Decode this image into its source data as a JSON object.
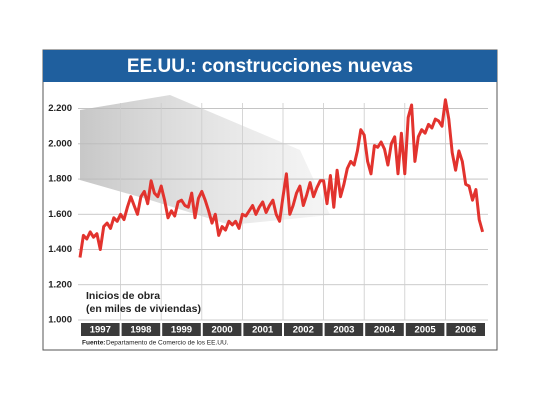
{
  "chart_data": {
    "type": "line",
    "title": "EE.UU.: construcciones nuevas",
    "annotation": [
      "Inicios de obra",
      "(en miles de viviendas)"
    ],
    "source_label": "Fuente:",
    "source": "Departamento de Comercio de los EE.UU.",
    "categories": [
      "1997",
      "1998",
      "1999",
      "2000",
      "2001",
      "2002",
      "2003",
      "2004",
      "2005",
      "2006"
    ],
    "values": [
      [
        1355,
        1480,
        1460,
        1500,
        1470,
        1490,
        1400,
        1530,
        1550,
        1520,
        1580,
        1560
      ],
      [
        1600,
        1570,
        1640,
        1700,
        1650,
        1600,
        1700,
        1730,
        1660,
        1790,
        1720,
        1700
      ],
      [
        1760,
        1680,
        1580,
        1620,
        1590,
        1670,
        1680,
        1650,
        1640,
        1720,
        1580,
        1690
      ],
      [
        1730,
        1680,
        1620,
        1550,
        1600,
        1480,
        1530,
        1510,
        1560,
        1540,
        1560,
        1520
      ],
      [
        1600,
        1590,
        1620,
        1650,
        1600,
        1640,
        1670,
        1610,
        1650,
        1680,
        1600,
        1560
      ],
      [
        1700,
        1830,
        1600,
        1650,
        1720,
        1760,
        1650,
        1710,
        1780,
        1700,
        1750,
        1790
      ],
      [
        1790,
        1660,
        1820,
        1640,
        1850,
        1700,
        1770,
        1860,
        1900,
        1880,
        1960,
        2080
      ],
      [
        2050,
        1900,
        1830,
        1990,
        1980,
        2010,
        1970,
        1880,
        2000,
        2040,
        1830,
        2060
      ],
      [
        1830,
        2150,
        2220,
        1900,
        2040,
        2080,
        2060,
        2110,
        2090,
        2140,
        2130,
        2100
      ],
      [
        2250,
        2140,
        1950,
        1850,
        1960,
        1900,
        1770,
        1760,
        1680,
        1740,
        1570,
        1500
      ]
    ],
    "color": "#e2332e",
    "ylim": [
      1000,
      2260
    ],
    "yticks": [
      {
        "value": 1000,
        "label": "1.000"
      },
      {
        "value": 1200,
        "label": "1.200"
      },
      {
        "value": 1400,
        "label": "1.400"
      },
      {
        "value": 1600,
        "label": "1.600"
      },
      {
        "value": 1800,
        "label": "1.800"
      },
      {
        "value": 2000,
        "label": "2.000"
      },
      {
        "value": 2200,
        "label": "2.200"
      }
    ],
    "grid": true
  }
}
